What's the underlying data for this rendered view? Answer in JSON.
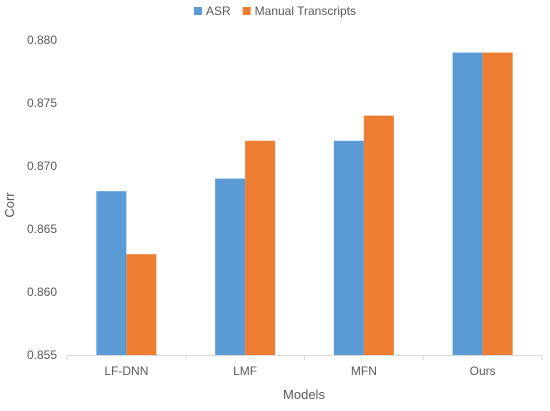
{
  "chart_data": {
    "type": "bar",
    "title": "",
    "xlabel": "Models",
    "ylabel": "Corr",
    "categories": [
      "LF-DNN",
      "LMF",
      "MFN",
      "Ours"
    ],
    "series": [
      {
        "name": "ASR",
        "values": [
          0.868,
          0.869,
          0.872,
          0.879
        ],
        "color": "#5b9bd5"
      },
      {
        "name": "Manual Transcripts",
        "values": [
          0.863,
          0.872,
          0.874,
          0.879
        ],
        "color": "#ed7d31"
      }
    ],
    "ylim": [
      0.855,
      0.88
    ],
    "yticks": [
      "0.855",
      "0.860",
      "0.865",
      "0.870",
      "0.875",
      "0.880"
    ],
    "grid": false,
    "legend_position": "top-center"
  }
}
